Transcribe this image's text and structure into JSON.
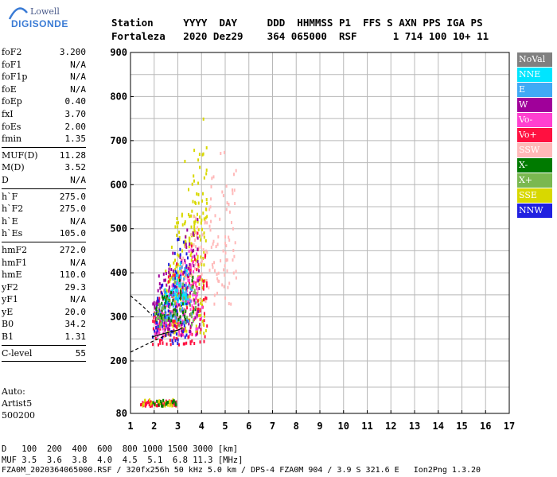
{
  "logo": {
    "line1": "Lowell",
    "line2": "DIGISONDE"
  },
  "header": {
    "labels": [
      "Station",
      "YYYY",
      "DAY",
      "DDD",
      "HHMMSS",
      "P1",
      "FFS",
      "S",
      "AXN",
      "PPS",
      "IGA",
      "PS"
    ],
    "values": [
      "Fortaleza",
      "2020",
      "Dez29",
      "364",
      "065000",
      "RSF",
      "",
      "1",
      "714",
      "100",
      "10+",
      "11"
    ]
  },
  "params": {
    "group1": [
      {
        "key": "foF2",
        "value": "3.200"
      },
      {
        "key": "foF1",
        "value": "N/A"
      },
      {
        "key": "foF1p",
        "value": "N/A"
      },
      {
        "key": "foE",
        "value": "N/A"
      },
      {
        "key": "foEp",
        "value": "0.40"
      },
      {
        "key": "fxI",
        "value": "3.70"
      },
      {
        "key": "foEs",
        "value": "2.00"
      },
      {
        "key": "fmin",
        "value": "1.35"
      }
    ],
    "group2": [
      {
        "key": "MUF(D)",
        "value": "11.28"
      },
      {
        "key": "M(D)",
        "value": "3.52"
      },
      {
        "key": "D",
        "value": "N/A"
      }
    ],
    "group3": [
      {
        "key": "h`F",
        "value": "275.0"
      },
      {
        "key": "h`F2",
        "value": "275.0"
      },
      {
        "key": "h`E",
        "value": "N/A"
      },
      {
        "key": "h`Es",
        "value": "105.0"
      }
    ],
    "group4": [
      {
        "key": "hmF2",
        "value": "272.0"
      },
      {
        "key": "hmF1",
        "value": "N/A"
      },
      {
        "key": "hmE",
        "value": "110.0"
      },
      {
        "key": "yF2",
        "value": "29.3"
      },
      {
        "key": "yF1",
        "value": "N/A"
      },
      {
        "key": "yE",
        "value": "20.0"
      },
      {
        "key": "B0",
        "value": "34.2"
      },
      {
        "key": "B1",
        "value": "1.31"
      }
    ],
    "group5": [
      {
        "key": "C-level",
        "value": "55"
      }
    ]
  },
  "auto": {
    "line1": "Auto:",
    "line2": "Artist5",
    "line3": "500200"
  },
  "muf_table": {
    "d_label": "D",
    "d_values": [
      "100",
      "200",
      "400",
      "600",
      "800",
      "1000",
      "1500",
      "3000"
    ],
    "d_unit": "[km]",
    "muf_label": "MUF",
    "muf_values": [
      "3.5",
      "3.6",
      "3.8",
      "4.0",
      "4.5",
      "5.1",
      "6.8",
      "11.3"
    ],
    "muf_unit": "[MHz]"
  },
  "footer": "FZA0M_2020364065000.RSF / 320fx256h 50 kHz 5.0 km / DPS-4 FZA0M 904 / 3.9 S 321.6 E   Ion2Png 1.3.20",
  "legend": [
    {
      "label": "NoVal",
      "color": "#808080"
    },
    {
      "label": "NNE",
      "color": "#00e5ff"
    },
    {
      "label": "E",
      "color": "#3fa9f5"
    },
    {
      "label": "W",
      "color": "#a0009a"
    },
    {
      "label": "Vo-",
      "color": "#ff40d0"
    },
    {
      "label": "Vo+",
      "color": "#ff1040"
    },
    {
      "label": "SSW",
      "color": "#ffb8b8"
    },
    {
      "label": "X-",
      "color": "#007a00"
    },
    {
      "label": "X+",
      "color": "#7ab850"
    },
    {
      "label": "SSE",
      "color": "#d8d800"
    },
    {
      "label": "NNW",
      "color": "#2020e0"
    }
  ],
  "chart_data": {
    "type": "scatter",
    "x_ticks": [
      1,
      2,
      3,
      4,
      5,
      6,
      7,
      8,
      9,
      10,
      11,
      12,
      13,
      14,
      15,
      16,
      17
    ],
    "y_ticks": [
      80,
      200,
      300,
      400,
      500,
      600,
      700,
      800,
      900
    ],
    "xlim": [
      1,
      17
    ],
    "ylim": [
      80,
      900
    ],
    "grid": true,
    "clusters": [
      {
        "name": "F-trace-SSE",
        "color": "#d8d800",
        "x_range": [
          2.4,
          4.2
        ],
        "y_range": [
          260,
          780
        ],
        "count": 260
      },
      {
        "name": "F-trace-SSW",
        "color": "#ffb8b8",
        "x_range": [
          3.0,
          5.5
        ],
        "y_range": [
          330,
          720
        ],
        "count": 150
      },
      {
        "name": "F-trace-Vo+",
        "color": "#ff1040",
        "x_range": [
          1.9,
          4.2
        ],
        "y_range": [
          240,
          520
        ],
        "count": 170
      },
      {
        "name": "F-trace-Vo-",
        "color": "#ff40d0",
        "x_range": [
          2.0,
          4.0
        ],
        "y_range": [
          260,
          480
        ],
        "count": 140
      },
      {
        "name": "F-trace-W",
        "color": "#a0009a",
        "x_range": [
          1.9,
          3.9
        ],
        "y_range": [
          260,
          560
        ],
        "count": 120
      },
      {
        "name": "F-trace-NNW",
        "color": "#2020e0",
        "x_range": [
          1.9,
          3.4
        ],
        "y_range": [
          240,
          500
        ],
        "count": 90
      },
      {
        "name": "F-trace-E",
        "color": "#3fa9f5",
        "x_range": [
          2.2,
          3.6
        ],
        "y_range": [
          290,
          460
        ],
        "count": 70
      },
      {
        "name": "F-trace-NNE",
        "color": "#00e5ff",
        "x_range": [
          2.4,
          3.4
        ],
        "y_range": [
          330,
          440
        ],
        "count": 40
      },
      {
        "name": "F-trace-X-",
        "color": "#007a00",
        "x_range": [
          2.0,
          3.8
        ],
        "y_range": [
          290,
          420
        ],
        "count": 50
      },
      {
        "name": "F-trace-X+",
        "color": "#7ab850",
        "x_range": [
          2.0,
          3.8
        ],
        "y_range": [
          280,
          430
        ],
        "count": 50
      },
      {
        "name": "Es-trace",
        "color": "#ff1040",
        "x_range": [
          1.4,
          2.9
        ],
        "y_range": [
          100,
          112
        ],
        "count": 60
      },
      {
        "name": "Es-trace-SSE",
        "color": "#d8d800",
        "x_range": [
          1.4,
          2.9
        ],
        "y_range": [
          100,
          115
        ],
        "count": 25
      },
      {
        "name": "Es-trace-X-",
        "color": "#007a00",
        "x_range": [
          1.6,
          2.9
        ],
        "y_range": [
          100,
          115
        ],
        "count": 20
      }
    ],
    "profile_lines": [
      {
        "points": [
          [
            1.9,
            254
          ],
          [
            2.4,
            262
          ],
          [
            3.0,
            270
          ],
          [
            3.2,
            275
          ]
        ]
      },
      {
        "points": [
          [
            1.0,
            220
          ],
          [
            1.5,
            233
          ],
          [
            2.0,
            246
          ],
          [
            2.5,
            258
          ]
        ]
      },
      {
        "points": [
          [
            1.0,
            348
          ],
          [
            1.5,
            325
          ],
          [
            1.9,
            304
          ]
        ]
      }
    ]
  }
}
